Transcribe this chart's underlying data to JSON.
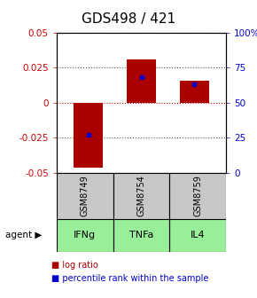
{
  "title": "GDS498 / 421",
  "samples": [
    "GSM8749",
    "GSM8754",
    "GSM8759"
  ],
  "agents": [
    "IFNg",
    "TNFa",
    "IL4"
  ],
  "log_ratios": [
    -0.046,
    0.031,
    0.016
  ],
  "percentile_ranks_pct": [
    27,
    68,
    63
  ],
  "ylim": [
    -0.05,
    0.05
  ],
  "yticks_left": [
    -0.05,
    -0.025,
    0,
    0.025,
    0.05
  ],
  "yticks_right": [
    0,
    25,
    50,
    75,
    100
  ],
  "ytick_labels_right": [
    "0",
    "25",
    "50",
    "75",
    "100%"
  ],
  "bar_color": "#AA0000",
  "dot_color": "#0000CC",
  "sample_box_color": "#C8C8C8",
  "agent_box_color": "#99EE99",
  "title_fontsize": 11,
  "tick_fontsize": 7.5,
  "sample_fontsize": 7,
  "agent_fontsize": 8,
  "legend_fontsize": 7
}
